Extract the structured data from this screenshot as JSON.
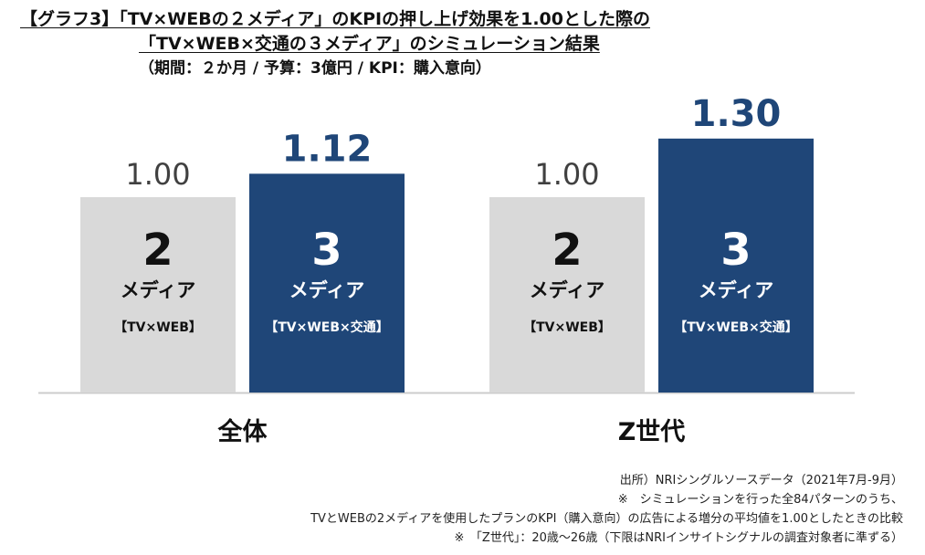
{
  "title": {
    "line1": "【グラフ3】「TV×WEBの２メディア」のKPIの押し上げ効果を1.00とした際の",
    "line2": "「TV×WEB×交通の３メディア」のシミュレーション結果",
    "line3": "（期間：２か月 / 予算：3億円 / KPI：購入意向）"
  },
  "colors": {
    "bar_2media": "#d9d9d9",
    "bar_3media": "#1f4678",
    "label_2media_value": "#404040",
    "label_3media_value": "#1f4678",
    "bar_text_dark": "#111111",
    "bar_text_light": "#ffffff",
    "baseline": "#cccccc"
  },
  "chart_data": {
    "type": "bar",
    "categories": [
      "全体",
      "Z世代"
    ],
    "series": [
      {
        "values": [
          1.0,
          1.0
        ],
        "value_labels": [
          "1.00",
          "1.00"
        ],
        "bar_number": "2",
        "bar_word": "メディア",
        "bar_detail": "【TV×WEB】"
      },
      {
        "values": [
          1.12,
          1.3
        ],
        "value_labels": [
          "1.12",
          "1.30"
        ],
        "bar_number": "3",
        "bar_word": "メディア",
        "bar_detail": "【TV×WEB×交通】"
      }
    ],
    "ylim": [
      0,
      1.45
    ],
    "grid": false,
    "legend": "none"
  },
  "notes": {
    "line1": "出所）NRIシングルソースデータ（2021年7月-9月）",
    "line2": "※　シミュレーションを行った全84パターンのうち、",
    "line3": "TVとWEBの2メディアを使用したプランのKPI（購入意向）の広告による増分の平均値を1.00としたときの比較",
    "line4": "※　「Z世代」：20歳～26歳（下限はNRIインサイトシグナルの調査対象者に準ずる）"
  }
}
